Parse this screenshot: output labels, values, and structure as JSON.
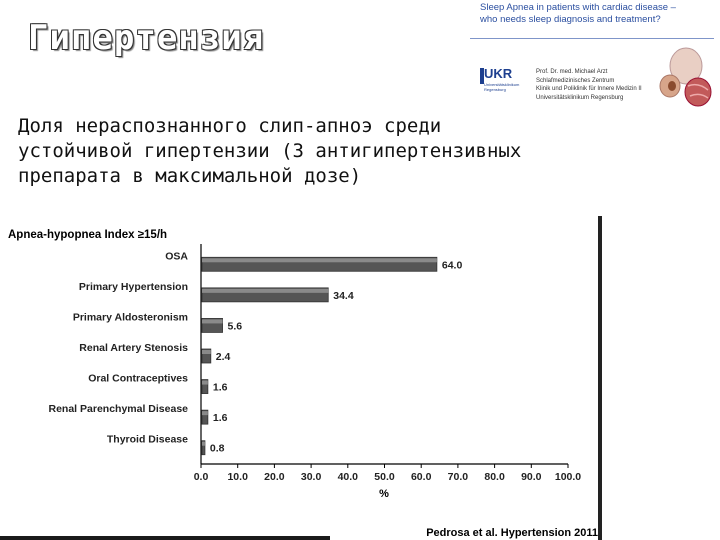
{
  "slide": {
    "title": "Гипертензия",
    "body_lines": [
      "Доля нераспознанного  слип-апноэ среди",
      "устойчивой гипертензии (3 антигипертензивных",
      "препарата в максимальной дозе)"
    ]
  },
  "thumbnail": {
    "title_lines": [
      "Sleep Apnea in patients with cardiac disease –",
      "who needs sleep diagnosis and treatment?"
    ],
    "logo_text": "UKR",
    "logo_subtitle_lines": [
      "Universitätsklinikum",
      "Regensburg"
    ],
    "author_lines": [
      "Prof. Dr. med. Michael Arzt",
      "Schlafmedizinisches Zentrum",
      "Klinik und Poliklinik für Innere Medizin II",
      "Universitätsklinikum Regensburg"
    ]
  },
  "chart_data": {
    "type": "bar",
    "orientation": "horizontal",
    "title": "Apnea-hypopnea Index ≥15/h",
    "categories": [
      "OSA",
      "Primary Hypertension",
      "Primary Aldosteronism",
      "Renal Artery Stenosis",
      "Oral Contraceptives",
      "Renal Parenchymal Disease",
      "Thyroid Disease"
    ],
    "values": [
      64.0,
      34.4,
      5.6,
      2.4,
      1.6,
      1.6,
      0.8
    ],
    "value_labels": [
      "64.0",
      "34.4",
      "5.6",
      "2.4",
      "1.6",
      "1.6",
      "0.8"
    ],
    "xlabel": "%",
    "xlim": [
      0,
      100
    ],
    "xticks": [
      "0.0",
      "10.0",
      "20.0",
      "30.0",
      "40.0",
      "50.0",
      "60.0",
      "70.0",
      "80.0",
      "90.0",
      "100.0"
    ],
    "grid": false,
    "bar_color": "#555555",
    "source": "Pedrosa et al. Hypertension 2011"
  }
}
